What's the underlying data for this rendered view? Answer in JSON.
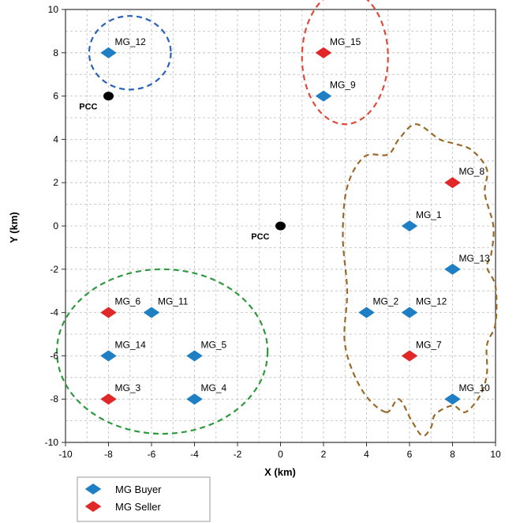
{
  "chart_data": {
    "type": "scatter",
    "xlabel": "X (km)",
    "ylabel": "Y (km)",
    "xlim": [
      -10,
      10
    ],
    "ylim": [
      -10,
      10
    ],
    "xticks": [
      -10,
      -8,
      -6,
      -4,
      -2,
      0,
      2,
      4,
      6,
      8,
      10
    ],
    "yticks": [
      -10,
      -8,
      -6,
      -4,
      -2,
      0,
      2,
      4,
      6,
      8,
      10
    ],
    "grid": true,
    "legend_position": "bottom-left",
    "series": [
      {
        "name": "MG Buyer",
        "color": "#1f7fc4",
        "marker": "diamond",
        "points": [
          {
            "label": "MG_12",
            "x": -8,
            "y": 8
          },
          {
            "label": "MG_9",
            "x": 2,
            "y": 6
          },
          {
            "label": "MG_1",
            "x": 6,
            "y": 0
          },
          {
            "label": "MG_13",
            "x": 8,
            "y": -2
          },
          {
            "label": "MG_2",
            "x": 4,
            "y": -4
          },
          {
            "label": "MG_12",
            "x": 6,
            "y": -4
          },
          {
            "label": "MG_10",
            "x": 8,
            "y": -8
          },
          {
            "label": "MG_11",
            "x": -6,
            "y": -4
          },
          {
            "label": "MG_14",
            "x": -8,
            "y": -6
          },
          {
            "label": "MG_5",
            "x": -4,
            "y": -6
          },
          {
            "label": "MG_4",
            "x": -4,
            "y": -8
          }
        ]
      },
      {
        "name": "MG Seller",
        "color": "#e02828",
        "marker": "diamond",
        "points": [
          {
            "label": "MG_15",
            "x": 2,
            "y": 8
          },
          {
            "label": "MG_8",
            "x": 8,
            "y": 2
          },
          {
            "label": "MG_7",
            "x": 6,
            "y": -6
          },
          {
            "label": "MG_6",
            "x": -8,
            "y": -4
          },
          {
            "label": "MG_3",
            "x": -8,
            "y": -8
          }
        ]
      }
    ],
    "pcc_points": [
      {
        "label": "PCC",
        "x": -8,
        "y": 6
      },
      {
        "label": "PCC",
        "x": 0,
        "y": 0
      }
    ],
    "clusters": [
      {
        "color": "#2a62b8",
        "shape": "ellipse",
        "cx": -7,
        "cy": 8,
        "rx": 1.9,
        "ry": 1.7
      },
      {
        "color": "#e04a3a",
        "shape": "ellipse",
        "cx": 3,
        "cy": 7.8,
        "rx": 2.0,
        "ry": 3.1
      },
      {
        "color": "#2e9a3e",
        "shape": "ellipse",
        "cx": -5.5,
        "cy": -5.8,
        "rx": 4.9,
        "ry": 3.8
      },
      {
        "color": "#9a6a2a",
        "shape": "cloud"
      }
    ]
  }
}
